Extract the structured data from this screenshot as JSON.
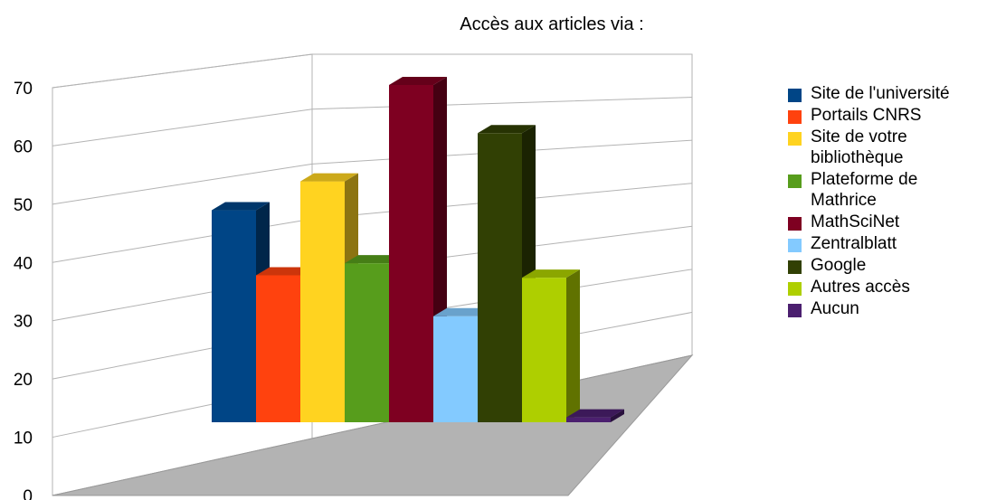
{
  "chart_data": {
    "type": "bar",
    "title": "Accès aux articles via :",
    "categories": [
      "Site de l'université",
      "Portails CNRS",
      "Site de votre\nbibliothèque",
      "Plateforme de\nMathrice",
      "MathSciNet",
      "Zentralblatt",
      "Google",
      "Autres accès",
      "Aucun"
    ],
    "values": [
      44,
      30.5,
      50,
      33,
      70,
      22,
      60,
      30,
      1
    ],
    "colors": [
      "#004586",
      "#ff420e",
      "#ffd320",
      "#579d1c",
      "#7e0021",
      "#83caff",
      "#314004",
      "#aecf00",
      "#4b1f6f"
    ],
    "ylim": [
      0,
      70
    ],
    "yticks": [
      "0",
      "10",
      "20",
      "30",
      "40",
      "50",
      "60",
      "70"
    ],
    "grid": true,
    "legend_position": "right",
    "style": "3d"
  }
}
